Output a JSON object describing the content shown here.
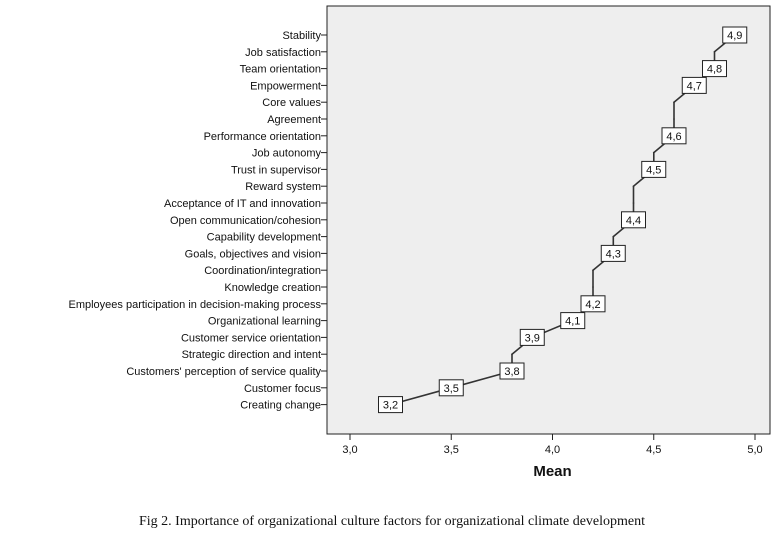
{
  "chart_data": {
    "type": "line",
    "categories": [
      "Stability",
      "Job satisfaction",
      "Team orientation",
      "Empowerment",
      "Core values",
      "Agreement",
      "Performance orientation",
      "Job autonomy",
      "Trust in supervisor",
      "Reward system",
      "Acceptance of IT and innovation",
      "Open communication/cohesion",
      "Capability development",
      "Goals, objectives and vision",
      "Coordination/integration",
      "Knowledge creation",
      "Employees  participation in decision-making process",
      "Organizational learning",
      "Customer service orientation",
      "Strategic direction and intent",
      "Customers' perception of service quality",
      "Customer focus",
      "Creating change"
    ],
    "values": [
      4.9,
      4.8,
      4.8,
      4.7,
      4.6,
      4.6,
      4.6,
      4.5,
      4.5,
      4.4,
      4.4,
      4.4,
      4.3,
      4.3,
      4.2,
      4.2,
      4.2,
      4.1,
      3.9,
      3.8,
      3.8,
      3.5,
      3.2
    ],
    "data_labels": [
      {
        "index": 0,
        "text": "4,9"
      },
      {
        "index": 2,
        "text": "4,8"
      },
      {
        "index": 3,
        "text": "4,7"
      },
      {
        "index": 6,
        "text": "4,6"
      },
      {
        "index": 8,
        "text": "4,5"
      },
      {
        "index": 11,
        "text": "4,4"
      },
      {
        "index": 13,
        "text": "4,3"
      },
      {
        "index": 16,
        "text": "4,2"
      },
      {
        "index": 17,
        "text": "4,1"
      },
      {
        "index": 18,
        "text": "3,9"
      },
      {
        "index": 20,
        "text": "3,8"
      },
      {
        "index": 21,
        "text": "3,5"
      },
      {
        "index": 22,
        "text": "3,2"
      }
    ],
    "xlabel": "Mean",
    "xlim": [
      3.0,
      5.0
    ],
    "xticks": [
      3.0,
      3.5,
      4.0,
      4.5,
      5.0
    ],
    "xtick_labels": [
      "3,0",
      "3,5",
      "4,0",
      "4,5",
      "5,0"
    ],
    "grid": false,
    "plot_background": "#eeeeee",
    "line_color": "#333333"
  },
  "caption": "Fig 2. Importance of organizational culture factors for organizational climate development"
}
